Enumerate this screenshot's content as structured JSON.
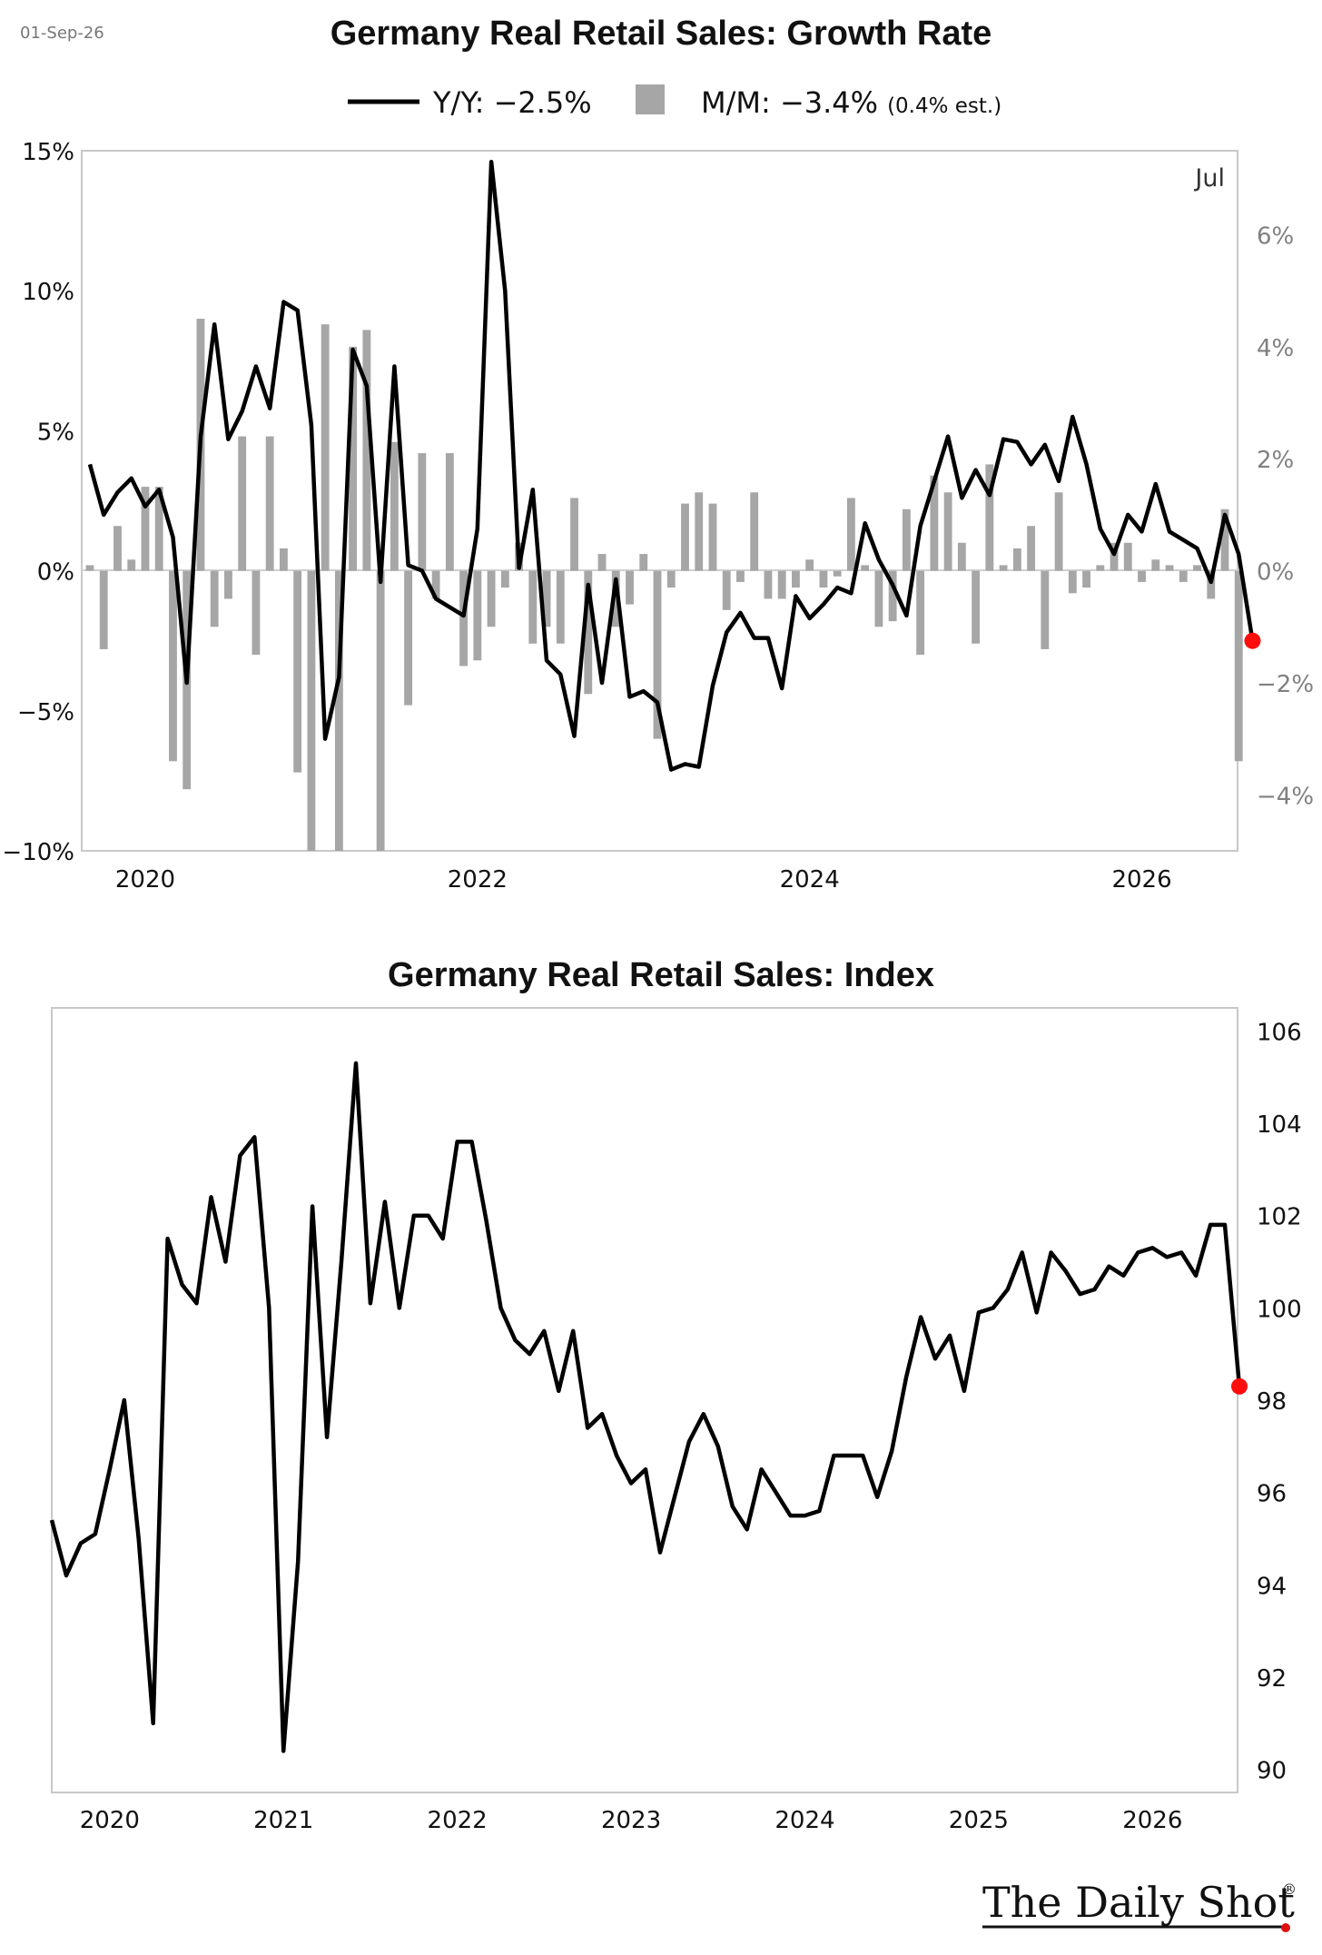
{
  "date_stamp": "01-Sep-26",
  "brand": "The Daily Shot",
  "brand_mark": "®",
  "colors": {
    "line": "#000000",
    "bar": "#a6a6a6",
    "marker": "#ff0d0d",
    "frame": "#c8c8c8",
    "grid": "#d0d0d0"
  },
  "chart_data": [
    {
      "type": "line",
      "title": "Germany Real Retail Sales: Growth Rate",
      "annotation": "Jul",
      "legend": [
        {
          "label": "Y/Y: −2.5%",
          "note": ""
        },
        {
          "label": "M/M: −3.4%",
          "note": "(0.4% est.)"
        }
      ],
      "x_ticks": [
        "2020",
        "2022",
        "2024",
        "2026"
      ],
      "y_ticks_left": [
        "15%",
        "10%",
        "5%",
        "0%",
        "−5%",
        "−10%"
      ],
      "y_ticks_right": [
        "6%",
        "4%",
        "2%",
        "0%",
        "−2%",
        "−4%"
      ],
      "ylim_left": [
        -10,
        15
      ],
      "ylim_right": [
        -5,
        7.5
      ],
      "x_start": "2019-09",
      "x_end": "2026-07",
      "series": [
        {
          "name": "Y/Y",
          "axis": "left",
          "values": [
            3.8,
            2.0,
            2.8,
            3.3,
            2.3,
            2.9,
            1.2,
            -4.0,
            4.8,
            8.8,
            4.7,
            5.7,
            7.3,
            5.8,
            9.6,
            9.3,
            5.2,
            -6.0,
            -3.8,
            7.9,
            6.6,
            -0.4,
            7.3,
            0.2,
            0.0,
            -1.0,
            -1.3,
            -1.6,
            1.5,
            14.6,
            10.0,
            0.1,
            2.9,
            -3.2,
            -3.7,
            -5.9,
            -0.5,
            -4.0,
            -0.3,
            -4.5,
            -4.3,
            -4.7,
            -7.1,
            -6.9,
            -7.0,
            -4.1,
            -2.2,
            -1.5,
            -2.4,
            -2.4,
            -4.2,
            -0.9,
            -1.7,
            -1.2,
            -0.6,
            -0.8,
            1.7,
            0.4,
            -0.5,
            -1.6,
            1.6,
            3.2,
            4.8,
            2.6,
            3.6,
            2.7,
            4.7,
            4.6,
            3.8,
            4.5,
            3.2,
            5.5,
            3.8,
            1.5,
            0.6,
            2.0,
            1.4,
            3.1,
            1.4,
            1.1,
            0.8,
            -0.4,
            2.0,
            0.6,
            -2.5
          ]
        },
        {
          "name": "M/M",
          "axis": "right",
          "values": [
            0.1,
            -1.4,
            0.8,
            0.2,
            1.5,
            1.5,
            -3.4,
            -3.9,
            4.5,
            -1.0,
            -0.5,
            2.4,
            -1.5,
            2.4,
            0.4,
            -3.6,
            -5.5,
            4.4,
            -5.5,
            4.0,
            4.3,
            -5.5,
            2.3,
            -2.4,
            2.1,
            -0.5,
            2.1,
            -1.7,
            -1.6,
            -1.0,
            -0.3,
            0.5,
            -1.3,
            -1.0,
            -1.3,
            1.3,
            -2.2,
            0.3,
            -1.0,
            -0.6,
            0.3,
            -3.0,
            -0.3,
            1.2,
            1.4,
            1.2,
            -0.7,
            -0.2,
            1.4,
            -0.5,
            -0.5,
            -0.3,
            0.2,
            -0.3,
            -0.1,
            1.3,
            0.1,
            -1.0,
            -0.9,
            1.1,
            -1.5,
            1.7,
            1.4,
            0.5,
            -1.3,
            1.9,
            0.1,
            0.4,
            0.8,
            -1.4,
            1.4,
            -0.4,
            -0.3,
            0.1,
            0.5,
            0.5,
            -0.2,
            0.2,
            0.1,
            -0.2,
            0.1,
            -0.5,
            1.1,
            -3.4
          ]
        }
      ]
    },
    {
      "type": "line",
      "title": "Germany Real Retail Sales: Index",
      "x_ticks": [
        "2020",
        "2021",
        "2022",
        "2023",
        "2024",
        "2025",
        "2026"
      ],
      "y_ticks": [
        "106",
        "104",
        "102",
        "100",
        "98",
        "96",
        "94",
        "92",
        "90"
      ],
      "ylim": [
        89.5,
        106.5
      ],
      "x_start": "2019-09",
      "x_end": "2026-07",
      "series": [
        {
          "name": "Index",
          "values": [
            95.4,
            94.2,
            94.9,
            95.1,
            96.5,
            98.0,
            95.0,
            91.0,
            101.5,
            100.5,
            100.1,
            102.4,
            101.0,
            103.3,
            103.7,
            100.0,
            90.4,
            94.5,
            102.2,
            97.2,
            101.0,
            105.3,
            100.1,
            102.3,
            100.0,
            102.0,
            102.0,
            101.5,
            103.6,
            103.6,
            101.9,
            100.0,
            99.3,
            99.0,
            99.5,
            98.2,
            99.5,
            97.4,
            97.7,
            96.8,
            96.2,
            96.5,
            94.7,
            95.9,
            97.1,
            97.7,
            97.0,
            95.7,
            95.2,
            96.5,
            96.0,
            95.5,
            95.5,
            95.6,
            96.8,
            96.8,
            96.8,
            95.9,
            96.9,
            98.5,
            99.8,
            98.9,
            99.4,
            98.2,
            99.9,
            100.0,
            100.4,
            101.2,
            99.9,
            101.2,
            100.8,
            100.3,
            100.4,
            100.9,
            100.7,
            101.2,
            101.3,
            101.1,
            101.2,
            100.7,
            101.8,
            101.8,
            98.3
          ]
        }
      ]
    }
  ]
}
